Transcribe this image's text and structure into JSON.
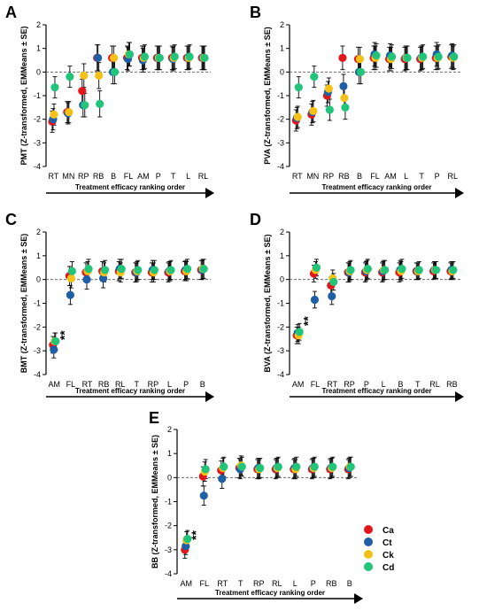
{
  "colors": {
    "Ca": "#e3161c",
    "Ct": "#1f5fa6",
    "Ck": "#f5c116",
    "Cd": "#22c47a"
  },
  "legend": [
    {
      "key": "Ca",
      "label": "Ca"
    },
    {
      "key": "Ct",
      "label": "Ct"
    },
    {
      "key": "Ck",
      "label": "Ck"
    },
    {
      "key": "Cd",
      "label": "Cd"
    }
  ],
  "chart_data": [
    {
      "panel": "A",
      "type": "scatter",
      "ylabel": "PMT (Z-transformed, EMMeans ± SE)",
      "xlabel": "Treatment efficacy ranking order",
      "categories": [
        "RT",
        "MN",
        "RP",
        "RB",
        "B",
        "FL",
        "AM",
        "P",
        "T",
        "L",
        "RL"
      ],
      "ylim": [
        -4,
        2
      ],
      "yticks": [
        -4,
        -3,
        -2,
        -1,
        0,
        1,
        2
      ],
      "reference_line": 0,
      "significance": [],
      "series": [
        {
          "name": "Ca",
          "values": [
            -2.1,
            -1.7,
            -0.8,
            0.6,
            0.6,
            0.6,
            0.6,
            0.6,
            0.6,
            0.6,
            0.6
          ]
        },
        {
          "name": "Ct",
          "values": [
            -2.0,
            -1.75,
            -1.4,
            0.6,
            0.0,
            0.55,
            0.5,
            0.6,
            0.55,
            0.6,
            0.6
          ]
        },
        {
          "name": "Ck",
          "values": [
            -1.8,
            -1.7,
            -0.15,
            -0.15,
            0.6,
            0.75,
            0.6,
            0.6,
            0.6,
            0.6,
            0.6
          ]
        },
        {
          "name": "Cd",
          "values": [
            -0.65,
            -0.2,
            -1.4,
            -1.35,
            0.0,
            0.75,
            0.65,
            0.6,
            0.65,
            0.65,
            0.6
          ]
        }
      ],
      "se": [
        0.45,
        0.45,
        0.5,
        0.55,
        0.5,
        0.5,
        0.5,
        0.5,
        0.5,
        0.5,
        0.5
      ]
    },
    {
      "panel": "B",
      "type": "scatter",
      "ylabel": "PVA (Z-transformed, EMMeans ± SE)",
      "xlabel": "Treatment efficacy ranking order",
      "categories": [
        "RT",
        "MN",
        "RP",
        "RB",
        "B",
        "FL",
        "AM",
        "L",
        "T",
        "P",
        "RL"
      ],
      "ylim": [
        -4,
        2
      ],
      "yticks": [
        -4,
        -3,
        -2,
        -1,
        0,
        1,
        2
      ],
      "reference_line": 0,
      "significance": [],
      "series": [
        {
          "name": "Ca",
          "values": [
            -2.05,
            -1.8,
            -1.0,
            0.6,
            0.55,
            0.6,
            0.55,
            0.55,
            0.55,
            0.6,
            0.65
          ]
        },
        {
          "name": "Ct",
          "values": [
            -1.95,
            -1.7,
            -0.85,
            -0.6,
            0.0,
            0.75,
            0.7,
            0.6,
            0.6,
            0.75,
            0.7
          ]
        },
        {
          "name": "Ck",
          "values": [
            -1.9,
            -1.65,
            -0.7,
            -1.1,
            0.55,
            0.6,
            0.55,
            0.6,
            0.6,
            0.6,
            0.6
          ]
        },
        {
          "name": "Cd",
          "values": [
            -0.65,
            -0.2,
            -1.6,
            -1.5,
            0.0,
            0.7,
            0.65,
            0.6,
            0.65,
            0.65,
            0.65
          ]
        }
      ],
      "se": [
        0.45,
        0.45,
        0.45,
        0.5,
        0.5,
        0.5,
        0.5,
        0.5,
        0.5,
        0.5,
        0.5
      ]
    },
    {
      "panel": "C",
      "type": "scatter",
      "ylabel": "BMT (Z-transformed, EMMeans ± SE)",
      "xlabel": "Treatment efficacy ranking order",
      "categories": [
        "AM",
        "FL",
        "RT",
        "RB",
        "RL",
        "T",
        "RP",
        "L",
        "P",
        "B"
      ],
      "ylim": [
        -4,
        2
      ],
      "yticks": [
        -4,
        -3,
        -2,
        -1,
        0,
        1,
        2
      ],
      "reference_line": 0,
      "significance": [
        {
          "category": "AM",
          "text": "**"
        }
      ],
      "series": [
        {
          "name": "Ca",
          "values": [
            -2.75,
            0.15,
            0.3,
            0.35,
            0.35,
            0.3,
            0.3,
            0.3,
            0.35,
            0.4
          ]
        },
        {
          "name": "Ct",
          "values": [
            -2.95,
            -0.65,
            0.0,
            0.05,
            0.45,
            0.3,
            0.4,
            0.35,
            0.4,
            0.4
          ]
        },
        {
          "name": "Ck",
          "values": [
            -2.6,
            0.05,
            0.35,
            0.3,
            0.3,
            0.35,
            0.3,
            0.35,
            0.35,
            0.45
          ]
        },
        {
          "name": "Cd",
          "values": [
            -2.6,
            0.35,
            0.45,
            0.4,
            0.45,
            0.4,
            0.4,
            0.4,
            0.45,
            0.45
          ]
        }
      ],
      "se": [
        0.35,
        0.4,
        0.4,
        0.4,
        0.4,
        0.4,
        0.4,
        0.4,
        0.4,
        0.4
      ]
    },
    {
      "panel": "D",
      "type": "scatter",
      "ylabel": "BVA (Z-transformed, EMMeans ± SE)",
      "xlabel": "Treatment efficacy ranking order",
      "categories": [
        "AM",
        "FL",
        "RT",
        "RP",
        "P",
        "L",
        "B",
        "T",
        "RL",
        "RB"
      ],
      "ylim": [
        -4,
        2
      ],
      "yticks": [
        -4,
        -3,
        -2,
        -1,
        0,
        1,
        2
      ],
      "reference_line": 0,
      "significance": [
        {
          "category": "AM",
          "text": "**"
        }
      ],
      "series": [
        {
          "name": "Ca",
          "values": [
            -2.35,
            0.25,
            -0.25,
            0.3,
            0.3,
            0.3,
            0.3,
            0.35,
            0.35,
            0.35
          ]
        },
        {
          "name": "Ct",
          "values": [
            -2.25,
            -0.85,
            -0.7,
            0.3,
            0.35,
            0.35,
            0.4,
            0.35,
            0.4,
            0.4
          ]
        },
        {
          "name": "Ck",
          "values": [
            -2.35,
            0.4,
            0.05,
            0.35,
            0.4,
            0.4,
            0.35,
            0.35,
            0.4,
            0.35
          ]
        },
        {
          "name": "Cd",
          "values": [
            -2.2,
            0.5,
            -0.1,
            0.4,
            0.45,
            0.4,
            0.45,
            0.4,
            0.4,
            0.4
          ]
        }
      ],
      "se": [
        0.35,
        0.35,
        0.35,
        0.4,
        0.4,
        0.4,
        0.4,
        0.35,
        0.35,
        0.35
      ]
    },
    {
      "panel": "E",
      "type": "scatter",
      "ylabel": "BB (Z-transformed, EMMeans ± SE)",
      "xlabel": "Treatment efficacy ranking order",
      "categories": [
        "AM",
        "FL",
        "RT",
        "T",
        "RP",
        "RL",
        "L",
        "P",
        "RB",
        "B"
      ],
      "ylim": [
        -4,
        2
      ],
      "yticks": [
        -4,
        -3,
        -2,
        -1,
        0,
        1,
        2
      ],
      "reference_line": 0,
      "significance": [
        {
          "category": "AM",
          "text": "**"
        }
      ],
      "series": [
        {
          "name": "Ca",
          "values": [
            -3.0,
            0.05,
            0.3,
            0.4,
            0.35,
            0.35,
            0.35,
            0.35,
            0.35,
            0.35
          ]
        },
        {
          "name": "Ct",
          "values": [
            -2.85,
            -0.75,
            -0.05,
            0.35,
            0.4,
            0.4,
            0.4,
            0.4,
            0.4,
            0.4
          ]
        },
        {
          "name": "Ck",
          "values": [
            -2.6,
            0.25,
            0.4,
            0.5,
            0.35,
            0.4,
            0.35,
            0.4,
            0.4,
            0.45
          ]
        },
        {
          "name": "Cd",
          "values": [
            -2.55,
            0.35,
            0.45,
            0.45,
            0.4,
            0.45,
            0.45,
            0.45,
            0.45,
            0.45
          ]
        }
      ],
      "se": [
        0.35,
        0.4,
        0.4,
        0.4,
        0.4,
        0.4,
        0.4,
        0.4,
        0.4,
        0.4
      ]
    }
  ]
}
